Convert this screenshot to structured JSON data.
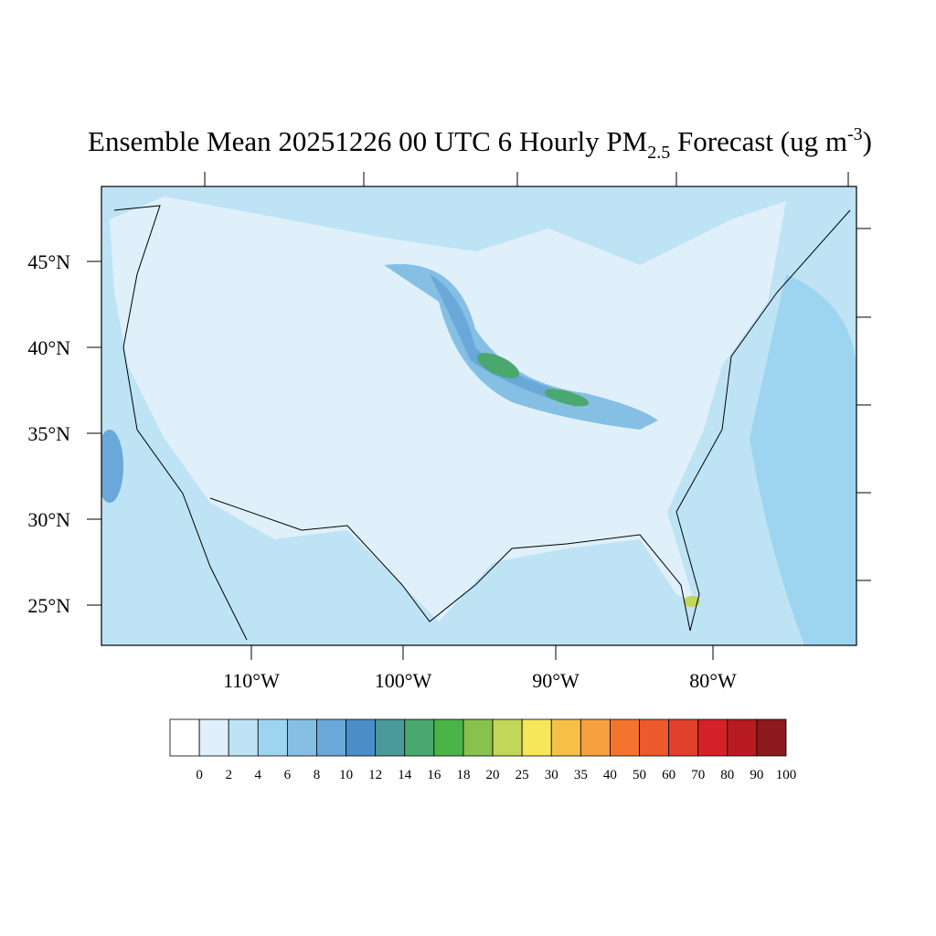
{
  "title": {
    "main": "Ensemble Mean 20251226 00 UTC 6 Hourly PM",
    "subscript": "2.5",
    "middle": " Forecast (ug m",
    "superscript": "-3",
    "end": ")"
  },
  "lat_labels": [
    "45°N",
    "40°N",
    "35°N",
    "30°N",
    "25°N"
  ],
  "lon_labels": [
    "110°W",
    "100°W",
    "90°W",
    "80°W"
  ],
  "colorbar": {
    "levels": [
      0,
      2,
      4,
      6,
      8,
      10,
      12,
      14,
      16,
      18,
      20,
      25,
      30,
      35,
      40,
      50,
      60,
      70,
      80,
      90,
      100
    ],
    "colors": [
      "#ffffff",
      "#dff0fa",
      "#bde3f5",
      "#9dd5f0",
      "#85c0e4",
      "#6aa8da",
      "#4a8ec9",
      "#4a9a9a",
      "#4aa86e",
      "#4ab448",
      "#86c24c",
      "#c2d657",
      "#f6e65a",
      "#f6c047",
      "#f6a040",
      "#f4742e",
      "#ea5a2c",
      "#e0402c",
      "#d42228",
      "#b81c22",
      "#8c1a1c"
    ]
  }
}
